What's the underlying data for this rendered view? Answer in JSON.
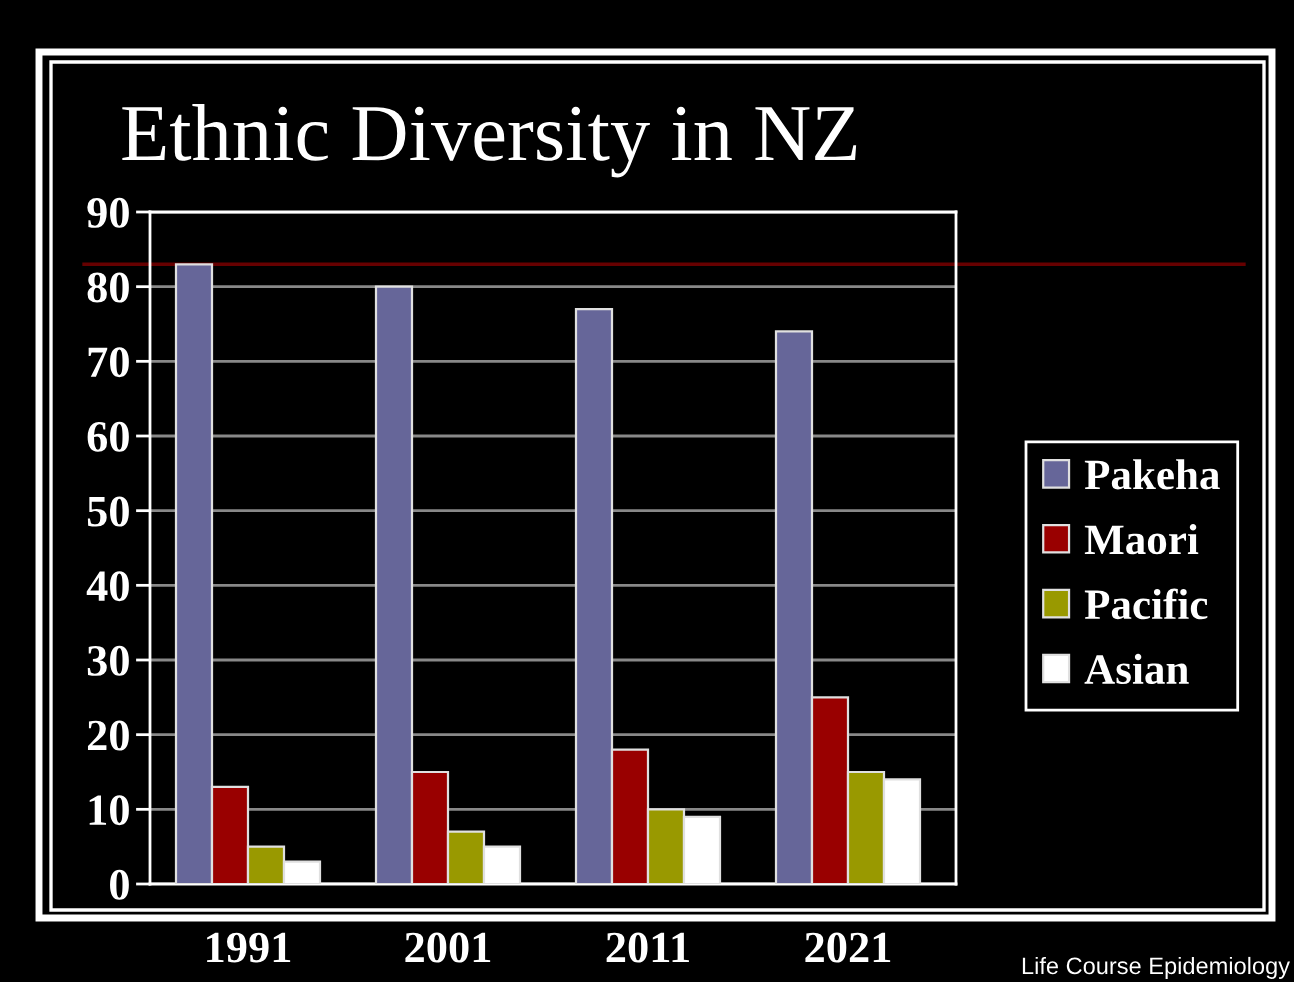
{
  "chart_data": {
    "type": "bar",
    "title": "Ethnic Diversity in NZ",
    "categories": [
      "1991",
      "2001",
      "2011",
      "2021"
    ],
    "series": [
      {
        "name": "Pakeha",
        "color": "#666699",
        "values": [
          83,
          80,
          77,
          74
        ]
      },
      {
        "name": "Maori",
        "color": "#990000",
        "values": [
          13,
          15,
          18,
          25
        ]
      },
      {
        "name": "Pacific",
        "color": "#999900",
        "values": [
          5,
          7,
          10,
          15
        ]
      },
      {
        "name": "Asian",
        "color": "#ffffff",
        "values": [
          3,
          5,
          9,
          14
        ]
      }
    ],
    "ylim": [
      0,
      90
    ],
    "yticks": [
      0,
      10,
      20,
      30,
      40,
      50,
      60,
      70,
      80,
      90
    ],
    "grid": "y",
    "legend": "right",
    "ref_lines": [
      {
        "axis": "y",
        "value": 83,
        "color": "#660000"
      }
    ],
    "annotations": [
      "Life Course Epidemiology"
    ]
  }
}
